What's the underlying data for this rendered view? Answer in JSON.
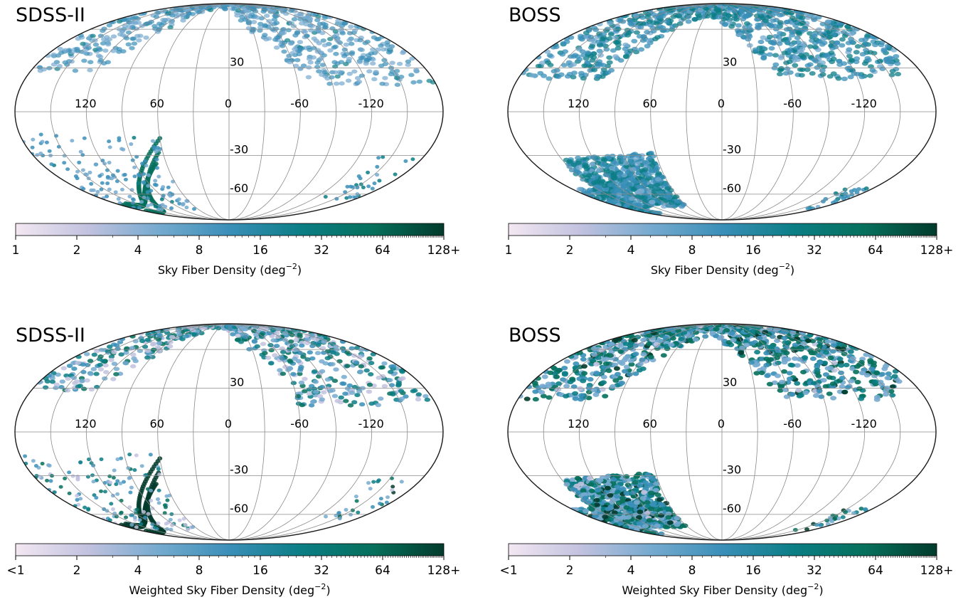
{
  "figure": {
    "colormap": [
      "#f3e8f2",
      "#c2c2df",
      "#76aacf",
      "#3a8fb8",
      "#0b7e85",
      "#06705c",
      "#023b2c"
    ],
    "grid_color": "#8a8a8a"
  },
  "chart_data": [
    {
      "type": "heatmap",
      "projection": "mollweide",
      "title": "SDSS-II",
      "quantity": "sky fiber density",
      "longitude_labels": [
        "120",
        "60",
        "0",
        "-60",
        "-120"
      ],
      "latitude_labels": [
        "30",
        "-30",
        "-60"
      ],
      "colorbar": {
        "label": "Sky Fiber Density (deg",
        "label_exp": "−2",
        "label_end": ")",
        "scale": "log2",
        "range": [
          1,
          128
        ],
        "ticks": [
          "1",
          "2",
          "4",
          "8",
          "16",
          "32",
          "64",
          "128+"
        ]
      },
      "footprint": "north"
    },
    {
      "type": "heatmap",
      "projection": "mollweide",
      "title": "BOSS",
      "quantity": "sky fiber density",
      "longitude_labels": [
        "120",
        "60",
        "0",
        "-60",
        "-120"
      ],
      "latitude_labels": [
        "30",
        "-30",
        "-60"
      ],
      "colorbar": {
        "label": "Sky Fiber Density (deg",
        "label_exp": "−2",
        "label_end": ")",
        "scale": "log2",
        "range": [
          1,
          128
        ],
        "ticks": [
          "1",
          "2",
          "4",
          "8",
          "16",
          "32",
          "64",
          "128+"
        ]
      },
      "footprint": "north-cap-and-south-patch"
    },
    {
      "type": "heatmap",
      "projection": "mollweide",
      "title": "SDSS-II",
      "quantity": "weighted sky fiber density",
      "longitude_labels": [
        "120",
        "60",
        "0",
        "-60",
        "-120"
      ],
      "latitude_labels": [
        "30",
        "-30",
        "-60"
      ],
      "colorbar": {
        "label": "Weighted Sky Fiber Density (deg",
        "label_exp": "−2",
        "label_end": ")",
        "scale": "log2",
        "range": [
          1,
          128
        ],
        "ticks": [
          "<1",
          "2",
          "4",
          "8",
          "16",
          "32",
          "64",
          "128+"
        ]
      },
      "footprint": "north"
    },
    {
      "type": "heatmap",
      "projection": "mollweide",
      "title": "BOSS",
      "quantity": "weighted sky fiber density",
      "longitude_labels": [
        "120",
        "60",
        "0",
        "-60",
        "-120"
      ],
      "latitude_labels": [
        "30",
        "-30",
        "-60"
      ],
      "colorbar": {
        "label": "Weighted Sky Fiber Density (deg",
        "label_exp": "−2",
        "label_end": ")",
        "scale": "log2",
        "range": [
          1,
          128
        ],
        "ticks": [
          "<1",
          "2",
          "4",
          "8",
          "16",
          "32",
          "64",
          "128+"
        ]
      },
      "footprint": "north-cap-and-south-patch"
    }
  ]
}
